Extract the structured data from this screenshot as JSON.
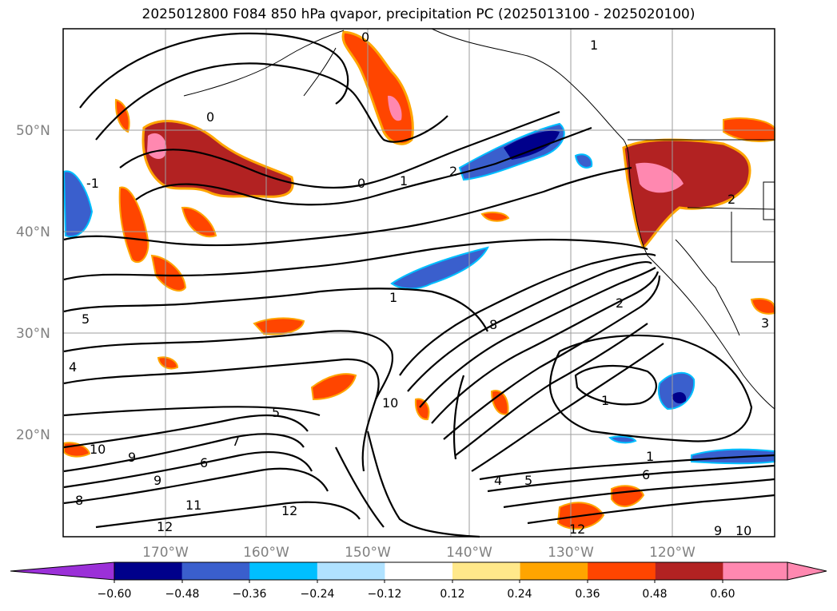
{
  "title": "2025012800 F084 850 hPa qvapor, precipitation PC (2025013100 - 2025020100)",
  "latitude_labels": [
    "50°N",
    "40°N",
    "30°N",
    "20°N"
  ],
  "longitude_labels": [
    "170°W",
    "160°W",
    "150°W",
    "140°W",
    "130°W",
    "120°W"
  ],
  "colorbar": {
    "tick_labels": [
      "−0.60",
      "−0.48",
      "−0.36",
      "−0.24",
      "−0.12",
      "0.12",
      "0.24",
      "0.36",
      "0.48",
      "0.60"
    ],
    "colors": [
      "#9b30d8",
      "#00008b",
      "#3a5fcd",
      "#00bfff",
      "#b0e2ff",
      "#ffffff",
      "#ffe88a",
      "#ffa500",
      "#ff4500",
      "#b22222",
      "#ff88b0",
      "#ff88b0"
    ]
  },
  "contour_labels": [
    "0",
    "0",
    "0",
    "-1",
    "1",
    "2",
    "1",
    "8",
    "2",
    "10",
    "5",
    "4",
    "5",
    "10",
    "9",
    "6",
    "7",
    "9",
    "8",
    "11",
    "12",
    "12",
    "4",
    "5",
    "6",
    "1",
    "1",
    "12",
    "9",
    "10",
    "2",
    "3",
    "1"
  ]
}
